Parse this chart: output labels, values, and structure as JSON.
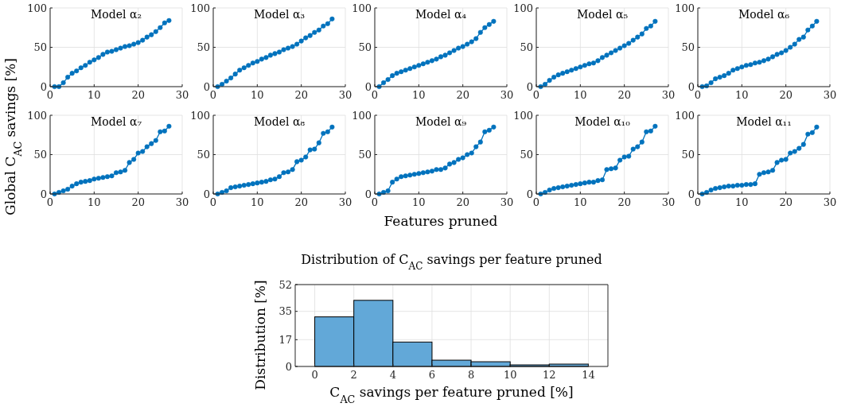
{
  "chart_data": [
    {
      "type": "line",
      "title": "Model α₂",
      "xlim": [
        0,
        30
      ],
      "xticks": [
        0,
        10,
        20,
        30
      ],
      "ylim": [
        0,
        100
      ],
      "yticks": [
        0,
        50,
        100
      ],
      "grid": true,
      "marker": "circle",
      "line_style": "solid",
      "x": [
        1,
        2,
        3,
        4,
        5,
        6,
        7,
        8,
        9,
        10,
        11,
        12,
        13,
        14,
        15,
        16,
        17,
        18,
        19,
        20,
        21,
        22,
        23,
        24,
        25,
        26,
        27
      ],
      "series": [
        {
          "color": "#0072bd",
          "values": [
            0,
            0,
            5,
            12,
            17,
            20,
            24,
            27,
            31,
            34,
            37,
            41,
            44,
            45,
            47,
            49,
            51,
            52,
            54,
            56,
            59,
            63,
            66,
            70,
            75,
            81,
            84
          ]
        }
      ]
    },
    {
      "type": "line",
      "title": "Model α₃",
      "xlim": [
        0,
        30
      ],
      "xticks": [
        0,
        10,
        20,
        30
      ],
      "ylim": [
        0,
        100
      ],
      "yticks": [
        0,
        50,
        100
      ],
      "grid": true,
      "marker": "circle",
      "line_style": "solid",
      "x": [
        1,
        2,
        3,
        4,
        5,
        6,
        7,
        8,
        9,
        10,
        11,
        12,
        13,
        14,
        15,
        16,
        17,
        18,
        19,
        20,
        21,
        22,
        23,
        24,
        25,
        26,
        27
      ],
      "series": [
        {
          "color": "#0072bd",
          "values": [
            0,
            3,
            7,
            11,
            16,
            21,
            24,
            27,
            30,
            32,
            35,
            37,
            40,
            42,
            44,
            47,
            49,
            51,
            54,
            58,
            62,
            65,
            69,
            72,
            77,
            80,
            86
          ]
        }
      ]
    },
    {
      "type": "line",
      "title": "Model α₄",
      "xlim": [
        0,
        30
      ],
      "xticks": [
        0,
        10,
        20,
        30
      ],
      "ylim": [
        0,
        100
      ],
      "yticks": [
        0,
        50,
        100
      ],
      "grid": true,
      "marker": "circle",
      "line_style": "solid",
      "x": [
        1,
        2,
        3,
        4,
        5,
        6,
        7,
        8,
        9,
        10,
        11,
        12,
        13,
        14,
        15,
        16,
        17,
        18,
        19,
        20,
        21,
        22,
        23,
        24,
        25,
        26,
        27
      ],
      "series": [
        {
          "color": "#0072bd",
          "values": [
            0,
            5,
            9,
            14,
            17,
            19,
            21,
            23,
            25,
            27,
            29,
            31,
            33,
            35,
            38,
            40,
            43,
            46,
            49,
            51,
            54,
            57,
            61,
            69,
            75,
            79,
            83
          ]
        }
      ]
    },
    {
      "type": "line",
      "title": "Model α₅",
      "xlim": [
        0,
        30
      ],
      "xticks": [
        0,
        10,
        20,
        30
      ],
      "ylim": [
        0,
        100
      ],
      "yticks": [
        0,
        50,
        100
      ],
      "grid": true,
      "marker": "circle",
      "line_style": "solid",
      "x": [
        1,
        2,
        3,
        4,
        5,
        6,
        7,
        8,
        9,
        10,
        11,
        12,
        13,
        14,
        15,
        16,
        17,
        18,
        19,
        20,
        21,
        22,
        23,
        24,
        25,
        26,
        27
      ],
      "series": [
        {
          "color": "#0072bd",
          "values": [
            0,
            3,
            8,
            12,
            15,
            17,
            19,
            21,
            23,
            25,
            27,
            29,
            30,
            33,
            37,
            40,
            43,
            46,
            49,
            52,
            55,
            59,
            63,
            67,
            74,
            77,
            83
          ]
        }
      ]
    },
    {
      "type": "line",
      "title": "Model α₆",
      "xlim": [
        0,
        30
      ],
      "xticks": [
        0,
        10,
        20,
        30
      ],
      "ylim": [
        0,
        100
      ],
      "yticks": [
        0,
        50,
        100
      ],
      "grid": true,
      "marker": "circle",
      "line_style": "solid",
      "x": [
        1,
        2,
        3,
        4,
        5,
        6,
        7,
        8,
        9,
        10,
        11,
        12,
        13,
        14,
        15,
        16,
        17,
        18,
        19,
        20,
        21,
        22,
        23,
        24,
        25,
        26,
        27
      ],
      "series": [
        {
          "color": "#0072bd",
          "values": [
            0,
            1,
            5,
            10,
            12,
            14,
            17,
            21,
            23,
            25,
            27,
            28,
            30,
            31,
            33,
            35,
            38,
            41,
            43,
            46,
            50,
            54,
            60,
            63,
            72,
            77,
            83
          ]
        }
      ]
    },
    {
      "type": "line",
      "title": "Model α₇",
      "ylabel": "Global C$_{AC}$ savings [%]",
      "xlim": [
        0,
        30
      ],
      "xticks": [
        0,
        10,
        20,
        30
      ],
      "ylim": [
        0,
        100
      ],
      "yticks": [
        0,
        50,
        100
      ],
      "grid": true,
      "marker": "circle",
      "line_style": "solid",
      "x": [
        1,
        2,
        3,
        4,
        5,
        6,
        7,
        8,
        9,
        10,
        11,
        12,
        13,
        14,
        15,
        16,
        17,
        18,
        19,
        20,
        21,
        22,
        23,
        24,
        25,
        26,
        27
      ],
      "series": [
        {
          "color": "#0072bd",
          "values": [
            0,
            2,
            4,
            6,
            10,
            13,
            15,
            16,
            17,
            19,
            20,
            21,
            22,
            23,
            27,
            28,
            30,
            40,
            44,
            52,
            54,
            60,
            64,
            68,
            79,
            80,
            86
          ]
        }
      ]
    },
    {
      "type": "line",
      "title": "Model α₈",
      "xlim": [
        0,
        30
      ],
      "xticks": [
        0,
        10,
        20,
        30
      ],
      "ylim": [
        0,
        100
      ],
      "yticks": [
        0,
        50,
        100
      ],
      "grid": true,
      "marker": "circle",
      "line_style": "solid",
      "x": [
        1,
        2,
        3,
        4,
        5,
        6,
        7,
        8,
        9,
        10,
        11,
        12,
        13,
        14,
        15,
        16,
        17,
        18,
        19,
        20,
        21,
        22,
        23,
        24,
        25,
        26,
        27
      ],
      "series": [
        {
          "color": "#0072bd",
          "values": [
            0,
            2,
            4,
            8,
            9,
            10,
            11,
            12,
            13,
            14,
            15,
            16,
            18,
            19,
            22,
            27,
            28,
            31,
            41,
            43,
            47,
            56,
            57,
            65,
            77,
            79,
            85
          ]
        }
      ]
    },
    {
      "type": "line",
      "title": "Model α₉",
      "xlabel": "Features pruned",
      "xlim": [
        0,
        30
      ],
      "xticks": [
        0,
        10,
        20,
        30
      ],
      "ylim": [
        0,
        100
      ],
      "yticks": [
        0,
        50,
        100
      ],
      "grid": true,
      "marker": "circle",
      "line_style": "solid",
      "x": [
        1,
        2,
        3,
        4,
        5,
        6,
        7,
        8,
        9,
        10,
        11,
        12,
        13,
        14,
        15,
        16,
        17,
        18,
        19,
        20,
        21,
        22,
        23,
        24,
        25,
        26,
        27
      ],
      "series": [
        {
          "color": "#0072bd",
          "values": [
            0,
            2,
            4,
            15,
            19,
            22,
            23,
            24,
            25,
            26,
            27,
            28,
            29,
            31,
            31,
            33,
            38,
            40,
            44,
            46,
            50,
            52,
            60,
            66,
            79,
            81,
            85
          ]
        }
      ]
    },
    {
      "type": "line",
      "title": "Model α₁₀",
      "xlim": [
        0,
        30
      ],
      "xticks": [
        0,
        10,
        20,
        30
      ],
      "ylim": [
        0,
        100
      ],
      "yticks": [
        0,
        50,
        100
      ],
      "grid": true,
      "marker": "circle",
      "line_style": "solid",
      "x": [
        1,
        2,
        3,
        4,
        5,
        6,
        7,
        8,
        9,
        10,
        11,
        12,
        13,
        14,
        15,
        16,
        17,
        18,
        19,
        20,
        21,
        22,
        23,
        24,
        25,
        26,
        27
      ],
      "series": [
        {
          "color": "#0072bd",
          "values": [
            0,
            2,
            5,
            7,
            8,
            9,
            10,
            11,
            12,
            13,
            14,
            15,
            15,
            17,
            18,
            31,
            32,
            33,
            43,
            47,
            48,
            57,
            60,
            66,
            79,
            80,
            86
          ]
        }
      ]
    },
    {
      "type": "line",
      "title": "Model α₁₁",
      "xlim": [
        0,
        30
      ],
      "xticks": [
        0,
        10,
        20,
        30
      ],
      "ylim": [
        0,
        100
      ],
      "yticks": [
        0,
        50,
        100
      ],
      "grid": true,
      "marker": "circle",
      "line_style": "solid",
      "x": [
        1,
        2,
        3,
        4,
        5,
        6,
        7,
        8,
        9,
        10,
        11,
        12,
        13,
        14,
        15,
        16,
        17,
        18,
        19,
        20,
        21,
        22,
        23,
        24,
        25,
        26,
        27
      ],
      "series": [
        {
          "color": "#0072bd",
          "values": [
            0,
            2,
            5,
            7,
            8,
            9,
            10,
            10,
            11,
            11,
            12,
            12,
            13,
            25,
            27,
            28,
            30,
            40,
            43,
            44,
            52,
            54,
            58,
            63,
            76,
            78,
            85
          ]
        }
      ]
    },
    {
      "type": "histogram",
      "title": "Distribution of C$_{AC}$ savings per feature pruned",
      "xlabel": "C$_{AC}$ savings per feature pruned [%]",
      "ylabel": "Distribution [%]",
      "xlim": [
        -1,
        15
      ],
      "xticks": [
        0,
        2,
        4,
        6,
        8,
        10,
        12,
        14
      ],
      "ylim": [
        0,
        52
      ],
      "yticks": [
        0,
        17,
        35,
        52
      ],
      "grid": true,
      "color": "#62a8d8",
      "bins": [
        0,
        2,
        4,
        6,
        8,
        10,
        12,
        14
      ],
      "values": [
        31.5,
        42,
        15.5,
        4,
        3,
        1,
        1.5
      ]
    }
  ]
}
